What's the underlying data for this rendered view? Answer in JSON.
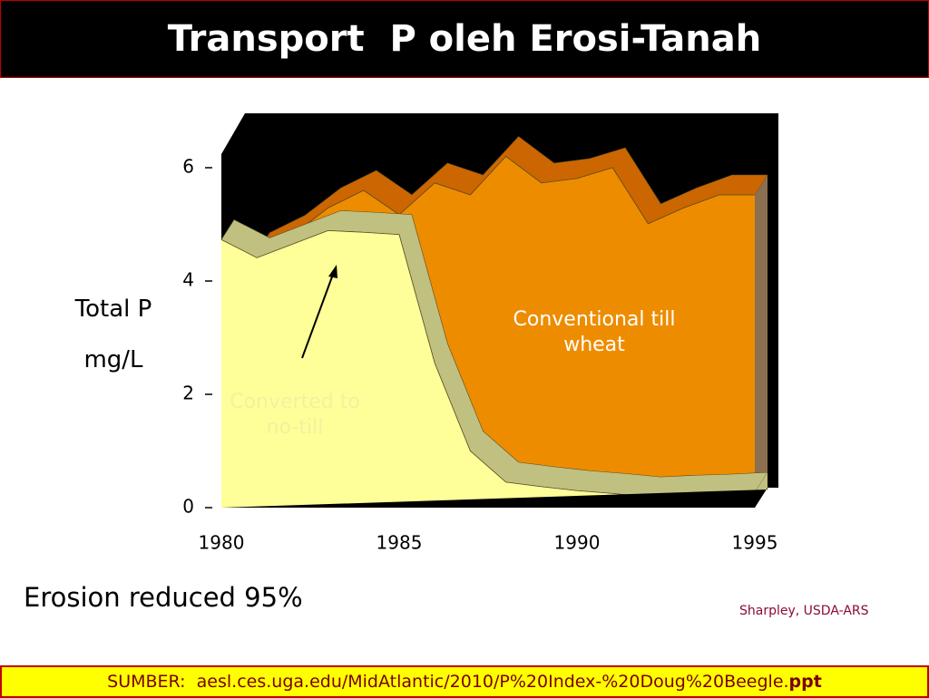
{
  "title": "Transport  P oleh Erosi-Tanah",
  "chart_data": {
    "type": "area3d",
    "ylabel": [
      "Total P",
      "mg/L"
    ],
    "x": [
      1980,
      1981,
      1982,
      1983,
      1984,
      1985,
      1986,
      1987,
      1988,
      1989,
      1990,
      1991,
      1992,
      1993,
      1994,
      1995
    ],
    "xlim": [
      1980,
      1995
    ],
    "xticks": [
      1980,
      1985,
      1990,
      1995
    ],
    "ylim": [
      0,
      6
    ],
    "yticks": [
      0,
      2,
      4,
      6
    ],
    "series": [
      {
        "name": "Conventional till wheat",
        "color": "#ee8c00",
        "rim": "#cc6600",
        "values": [
          null,
          4.5,
          4.81,
          5.29,
          5.6,
          5.17,
          5.73,
          5.52,
          6.2,
          5.73,
          5.81,
          6.0,
          5.01,
          5.29,
          5.52,
          5.52
        ]
      },
      {
        "name": "Converted to no-till",
        "color": "#ffff99",
        "rim": "#c0c080",
        "values": [
          4.73,
          4.41,
          4.65,
          4.89,
          4.86,
          4.82,
          2.55,
          1.0,
          0.45,
          0.37,
          0.3,
          0.25,
          0.19,
          0.22,
          0.24,
          0.27
        ]
      }
    ]
  },
  "note": "Erosion reduced 95%",
  "credit": "Sharpley, USDA-ARS",
  "footer": {
    "text": "SUMBER:  aesl.ces.uga.edu/MidAtlantic/2010/P%20Index-%20Doug%20Beegle.",
    "bold": "ppt"
  }
}
